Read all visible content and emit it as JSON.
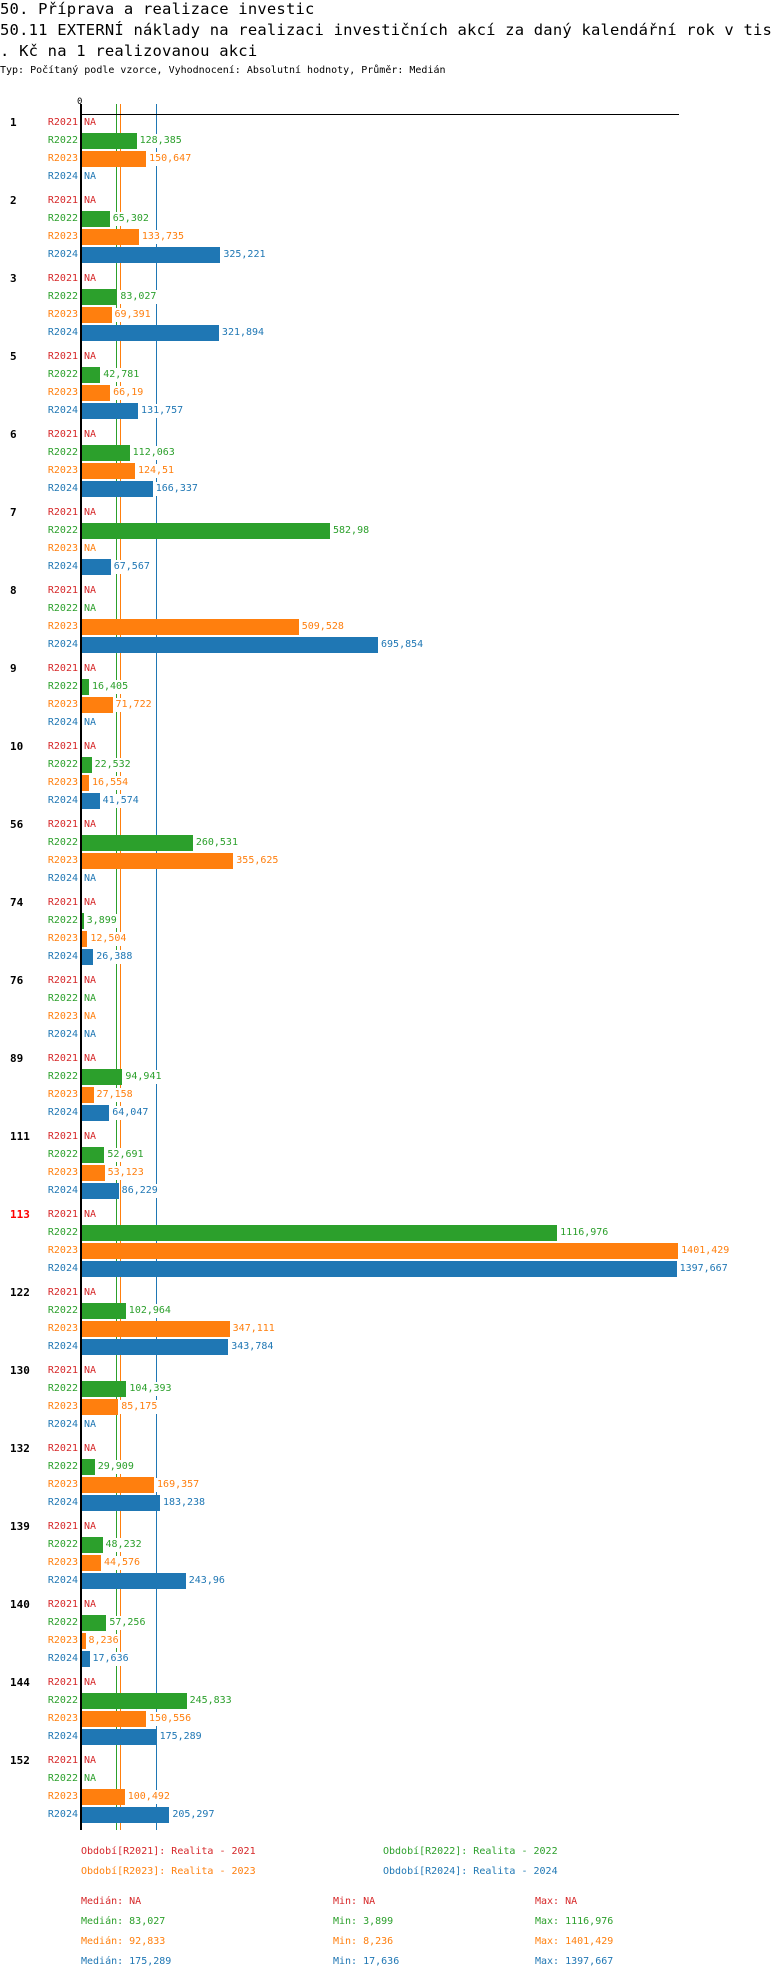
{
  "header": {
    "title_line1": "50. Příprava a realizace investic",
    "title_line2": "50.11 EXTERNÍ náklady na realizaci investičních akcí za daný kalendářní rok v tis",
    "title_line3": ". Kč na 1 realizovanou akci",
    "subtitle": "Typ: Počítaný podle vzorce, Vyhodnocení: Absolutní hodnoty, Průměr: Medián"
  },
  "colors": {
    "R2021": "#d62728",
    "R2022": "#2ca02c",
    "R2023": "#ff7f0e",
    "R2024": "#1f77b4",
    "highlight": "#ff0000"
  },
  "chart_data": {
    "type": "bar",
    "orientation": "horizontal",
    "axis_zero_label": "0",
    "series_names": [
      "R2021",
      "R2022",
      "R2023",
      "R2024"
    ],
    "na_label": "NA",
    "xlim": [
      0,
      1401.429
    ],
    "groups": [
      {
        "id": "1",
        "values": [
          "NA",
          "128,385",
          "150,647",
          "NA"
        ]
      },
      {
        "id": "2",
        "values": [
          "NA",
          "65,302",
          "133,735",
          "325,221"
        ]
      },
      {
        "id": "3",
        "values": [
          "NA",
          "83,027",
          "69,391",
          "321,894"
        ]
      },
      {
        "id": "5",
        "values": [
          "NA",
          "42,781",
          "66,19",
          "131,757"
        ]
      },
      {
        "id": "6",
        "values": [
          "NA",
          "112,063",
          "124,51",
          "166,337"
        ]
      },
      {
        "id": "7",
        "values": [
          "NA",
          "582,98",
          "NA",
          "67,567"
        ]
      },
      {
        "id": "8",
        "values": [
          "NA",
          "NA",
          "509,528",
          "695,854"
        ]
      },
      {
        "id": "9",
        "values": [
          "NA",
          "16,405",
          "71,722",
          "NA"
        ]
      },
      {
        "id": "10",
        "values": [
          "NA",
          "22,532",
          "16,554",
          "41,574"
        ]
      },
      {
        "id": "56",
        "values": [
          "NA",
          "260,531",
          "355,625",
          "NA"
        ]
      },
      {
        "id": "74",
        "values": [
          "NA",
          "3,899",
          "12,504",
          "26,388"
        ]
      },
      {
        "id": "76",
        "values": [
          "NA",
          "NA",
          "NA",
          "NA"
        ]
      },
      {
        "id": "89",
        "values": [
          "NA",
          "94,941",
          "27,158",
          "64,047"
        ]
      },
      {
        "id": "111",
        "values": [
          "NA",
          "52,691",
          "53,123",
          "86,229"
        ]
      },
      {
        "id": "113",
        "highlight": true,
        "values": [
          "NA",
          "1116,976",
          "1401,429",
          "1397,667"
        ]
      },
      {
        "id": "122",
        "values": [
          "NA",
          "102,964",
          "347,111",
          "343,784"
        ]
      },
      {
        "id": "130",
        "values": [
          "NA",
          "104,393",
          "85,175",
          "NA"
        ]
      },
      {
        "id": "132",
        "values": [
          "NA",
          "29,909",
          "169,357",
          "183,238"
        ]
      },
      {
        "id": "139",
        "values": [
          "NA",
          "48,232",
          "44,576",
          "243,96"
        ]
      },
      {
        "id": "140",
        "values": [
          "NA",
          "57,256",
          "8,236",
          "17,636"
        ]
      },
      {
        "id": "144",
        "values": [
          "NA",
          "245,833",
          "150,556",
          "175,289"
        ]
      },
      {
        "id": "152",
        "values": [
          "NA",
          "NA",
          "100,492",
          "205,297"
        ]
      }
    ],
    "median_lines": {
      "R2022": 83.027,
      "R2023": 92.833,
      "R2024": 175.289
    },
    "legend": [
      "Období[R2021]: Realita - 2021",
      "Období[R2022]: Realita - 2022",
      "Období[R2023]: Realita - 2023",
      "Období[R2024]: Realita - 2024"
    ],
    "stats": [
      {
        "median": "Medián: NA",
        "min": "Min: NA",
        "max": "Max: NA"
      },
      {
        "median": "Medián: 83,027",
        "min": "Min: 3,899",
        "max": "Max: 1116,976"
      },
      {
        "median": "Medián: 92,833",
        "min": "Min: 8,236",
        "max": "Max: 1401,429"
      },
      {
        "median": "Medián: 175,289",
        "min": "Min: 17,636",
        "max": "Max: 1397,667"
      }
    ]
  }
}
